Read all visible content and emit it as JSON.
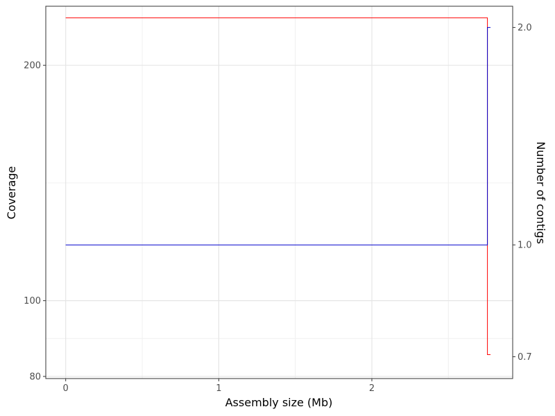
{
  "chart_data": {
    "type": "line",
    "title": "",
    "xlabel": "Assembly size (Mb)",
    "ylabel_left": "Coverage",
    "ylabel_right": "Number of contigs",
    "x_ticks": [
      0,
      1,
      2
    ],
    "y_left_ticks": [
      80,
      100,
      200
    ],
    "y_right_ticks": [
      0.7,
      1.0,
      2.0
    ],
    "y_right_tick_labels": [
      "0.7",
      "1.0",
      "2.0"
    ],
    "xlim": [
      -0.13,
      2.92
    ],
    "y_left_scale": "log",
    "ylim_left": [
      79.5,
      238
    ],
    "y_right_scale": "log",
    "ylim_right": [
      0.653,
      2.14
    ],
    "grid": true,
    "series": [
      {
        "axis": "left",
        "color": "#ff0000",
        "x": [
          0,
          2.755,
          2.755,
          2.775
        ],
        "y": [
          230,
          230,
          85.3,
          85.3
        ]
      },
      {
        "axis": "right",
        "color": "#0000cc",
        "x": [
          0,
          2.755,
          2.755,
          2.775
        ],
        "y": [
          1.0,
          1.0,
          2.0,
          2.0
        ]
      }
    ]
  }
}
